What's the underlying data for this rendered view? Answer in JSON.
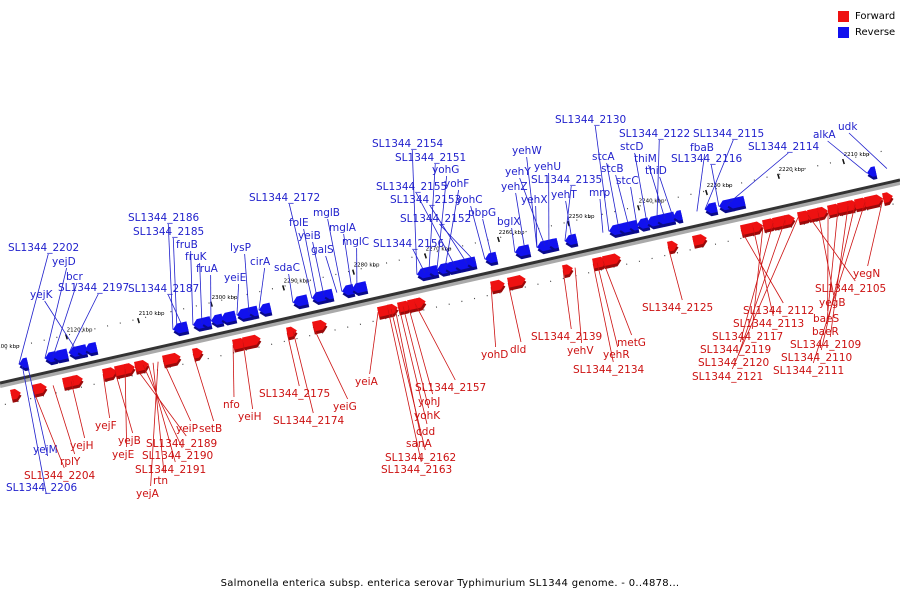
{
  "legend": {
    "forward_label": "Forward",
    "reverse_label": "Reverse",
    "forward_color": "#ee1111",
    "reverse_color": "#1111ee"
  },
  "caption": "Salmonella enterica subsp. enterica serovar Typhimurium SL1344 genome. - 0..4878...",
  "ticks": [
    "2100 kbp",
    "2110 kbp",
    "2120 kbp",
    "2210 kbp",
    "2220 kbp",
    "2230 kbp",
    "2240 kbp",
    "2250 kbp",
    "2260 kbp",
    "2270 kbp",
    "2280 kbp",
    "2290 kbp",
    "2300 kbp"
  ],
  "reverse_genes": [
    "SL1344_2202",
    "yejD",
    "bcr",
    "SL1344_2197",
    "yejK",
    "SL1344_2186",
    "SL1344_2185",
    "fruB",
    "fruK",
    "fruA",
    "SL1344_2187",
    "yeiE",
    "lysP",
    "cirA",
    "sdaC",
    "SL1344_2172",
    "folE",
    "yeiB",
    "mglB",
    "galS",
    "mglA",
    "mglC",
    "SL1344_2154",
    "SL1344_2151",
    "yohG",
    "yohF",
    "SL1344_2155",
    "SL1344_2153",
    "yohC",
    "pbpG",
    "SL1344_2152",
    "SL1344_2156",
    "bglX",
    "yehW",
    "yehU",
    "yehY",
    "yehZ",
    "yehX",
    "SL1344_2135",
    "yehT",
    "SL1344_2130",
    "stcA",
    "stcB",
    "mrp",
    "stcC",
    "stcD",
    "SL1344_2122",
    "thiM",
    "thiD",
    "SL1344_2115",
    "fbaB",
    "SL1344_2116",
    "SL1344_2114",
    "alkA",
    "udk",
    "yejM",
    "SL1344_2206"
  ],
  "forward_genes": [
    "SL1344_2204",
    "rplY",
    "yejH",
    "yejF",
    "yejB",
    "yejE",
    "SL1344_2189",
    "yeiP",
    "setB",
    "SL1344_2190",
    "SL1344_2191",
    "rtn",
    "yejA",
    "nfo",
    "yeiH",
    "SL1344_2175",
    "SL1344_2174",
    "yeiG",
    "yeiA",
    "SL1344_2157",
    "yohJ",
    "yohK",
    "cdd",
    "sanA",
    "SL1344_2162",
    "SL1344_2163",
    "yohD",
    "dld",
    "SL1344_2139",
    "yehV",
    "metG",
    "yehR",
    "SL1344_2134",
    "SL1344_2125",
    "SL1344_2112",
    "SL1344_2113",
    "SL1344_2117",
    "SL1344_2119",
    "SL1344_2120",
    "SL1344_2121",
    "SL1344_2105",
    "yegB",
    "baeS",
    "baeR",
    "SL1344_2109",
    "SL1344_2110",
    "SL1344_2111",
    "yegN"
  ]
}
